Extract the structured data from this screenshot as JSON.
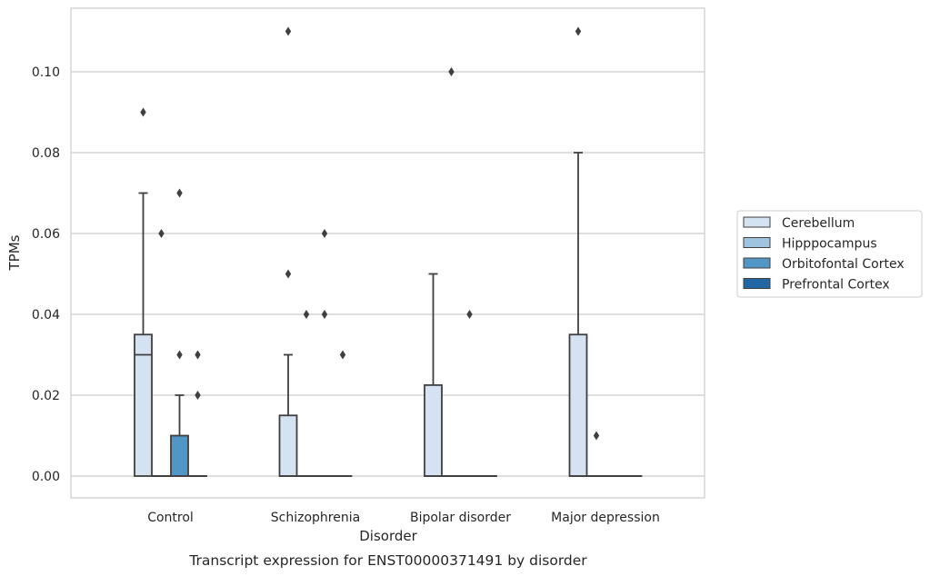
{
  "chart_data": {
    "type": "box",
    "title": "Transcript expression for ENST00000371491 by disorder",
    "xlabel": "Disorder",
    "ylabel": "TPMs",
    "ylim": [
      -0.0055,
      0.1155
    ],
    "yticks": [
      "0.00",
      "0.02",
      "0.04",
      "0.06",
      "0.08",
      "0.10"
    ],
    "grid": "horizontal",
    "legend_position": "right",
    "categories": [
      "Control",
      "Schizophrenia",
      "Bipolar disorder",
      "Major depression"
    ],
    "series": [
      {
        "name": "Cerebellum",
        "color": "#d4e2f1",
        "boxes": [
          {
            "min": 0,
            "q1": 0,
            "median": 0.03,
            "q3": 0.035,
            "max": 0.07,
            "outliers": [
              0.09
            ]
          },
          {
            "min": 0,
            "q1": 0,
            "median": 0,
            "q3": 0.015,
            "max": 0.03,
            "outliers": [
              0.05,
              0.11
            ]
          },
          {
            "min": 0,
            "q1": 0,
            "median": 0,
            "q3": 0.0225,
            "max": 0.05,
            "outliers": []
          },
          {
            "min": 0,
            "q1": 0,
            "median": 0,
            "q3": 0.035,
            "max": 0.08,
            "outliers": [
              0.11
            ]
          }
        ]
      },
      {
        "name": "Hipppocampus",
        "color": "#9fc4dd",
        "boxes": [
          {
            "min": 0,
            "q1": 0,
            "median": 0,
            "q3": 0,
            "max": 0,
            "outliers": [
              0.06
            ]
          },
          {
            "min": 0,
            "q1": 0,
            "median": 0,
            "q3": 0,
            "max": 0,
            "outliers": [
              0.04
            ]
          },
          {
            "min": 0,
            "q1": 0,
            "median": 0,
            "q3": 0,
            "max": 0,
            "outliers": [
              0.1
            ]
          },
          {
            "min": 0,
            "q1": 0,
            "median": 0,
            "q3": 0,
            "max": 0,
            "outliers": [
              0.01
            ]
          }
        ]
      },
      {
        "name": "Orbitofontal Cortex",
        "color": "#5096c6",
        "boxes": [
          {
            "min": 0,
            "q1": 0,
            "median": 0,
            "q3": 0.01,
            "max": 0.02,
            "outliers": [
              0.03,
              0.07
            ]
          },
          {
            "min": 0,
            "q1": 0,
            "median": 0,
            "q3": 0,
            "max": 0,
            "outliers": [
              0.04,
              0.06
            ]
          },
          {
            "min": 0,
            "q1": 0,
            "median": 0,
            "q3": 0,
            "max": 0,
            "outliers": [
              0.04
            ]
          },
          {
            "min": 0,
            "q1": 0,
            "median": 0,
            "q3": 0,
            "max": 0,
            "outliers": []
          }
        ]
      },
      {
        "name": "Prefrontal Cortex",
        "color": "#2366a5",
        "boxes": [
          {
            "min": 0,
            "q1": 0,
            "median": 0,
            "q3": 0,
            "max": 0,
            "outliers": [
              0.02,
              0.03
            ]
          },
          {
            "min": 0,
            "q1": 0,
            "median": 0,
            "q3": 0,
            "max": 0,
            "outliers": [
              0.03
            ]
          },
          {
            "min": 0,
            "q1": 0,
            "median": 0,
            "q3": 0,
            "max": 0,
            "outliers": []
          },
          {
            "min": 0,
            "q1": 0,
            "median": 0,
            "q3": 0,
            "max": 0,
            "outliers": []
          }
        ]
      }
    ],
    "colors": {
      "line": "#3f3f3f",
      "grid": "#cccccc",
      "frame": "#cccccc"
    }
  }
}
